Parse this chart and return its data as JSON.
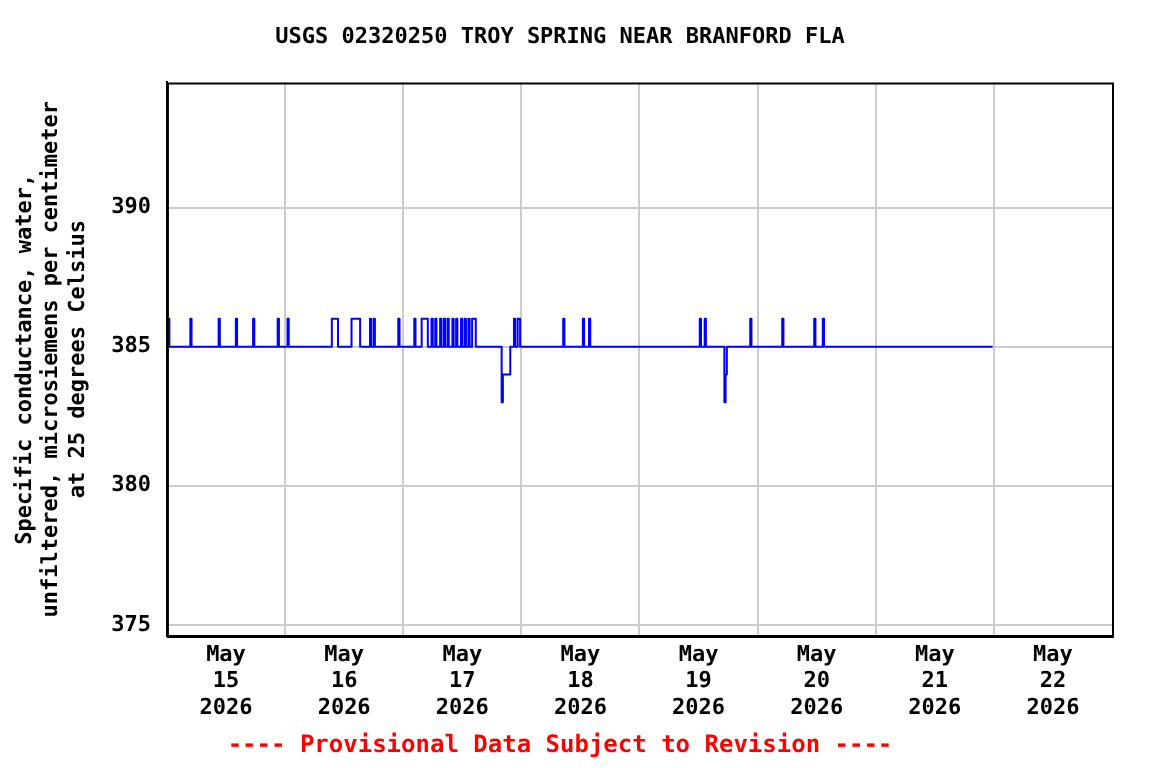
{
  "chart_data": {
    "type": "step",
    "title": "USGS 02320250 TROY SPRING NEAR BRANFORD FLA",
    "ylabel": "Specific conductance, water,\nunfiltered, microsiemens per centimeter\nat 25 degrees Celsius",
    "annotations": [
      "---- Provisional Data Subject to Revision ----"
    ],
    "series": [
      {
        "color": "#0000ff",
        "x": [
          "2026-05-15T00:00",
          "2026-05-15T00:30",
          "2026-05-15T04:45",
          "2026-05-15T05:00",
          "2026-05-15T10:30",
          "2026-05-15T10:45",
          "2026-05-15T14:00",
          "2026-05-15T14:15",
          "2026-05-15T17:30",
          "2026-05-15T17:45",
          "2026-05-15T22:30",
          "2026-05-15T22:45",
          "2026-05-16T00:30",
          "2026-05-16T00:45",
          "2026-05-16T09:30",
          "2026-05-16T10:45",
          "2026-05-16T13:30",
          "2026-05-16T15:15",
          "2026-05-16T17:15",
          "2026-05-16T17:30",
          "2026-05-16T18:00",
          "2026-05-16T18:15",
          "2026-05-16T23:00",
          "2026-05-16T23:15",
          "2026-05-17T02:15",
          "2026-05-17T02:30",
          "2026-05-17T03:45",
          "2026-05-17T05:00",
          "2026-05-17T05:45",
          "2026-05-17T06:00",
          "2026-05-17T06:30",
          "2026-05-17T06:45",
          "2026-05-17T07:30",
          "2026-05-17T07:45",
          "2026-05-17T08:15",
          "2026-05-17T08:30",
          "2026-05-17T09:00",
          "2026-05-17T09:15",
          "2026-05-17T10:00",
          "2026-05-17T10:15",
          "2026-05-17T10:45",
          "2026-05-17T11:00",
          "2026-05-17T11:45",
          "2026-05-17T12:00",
          "2026-05-17T12:30",
          "2026-05-17T12:45",
          "2026-05-17T13:15",
          "2026-05-17T13:30",
          "2026-05-17T14:00",
          "2026-05-17T14:45",
          "2026-05-17T20:00",
          "2026-05-17T20:15",
          "2026-05-17T21:45",
          "2026-05-17T22:30",
          "2026-05-17T22:45",
          "2026-05-17T23:15",
          "2026-05-17T23:45",
          "2026-05-18T08:30",
          "2026-05-18T08:45",
          "2026-05-18T12:30",
          "2026-05-18T12:45",
          "2026-05-18T13:45",
          "2026-05-18T14:00",
          "2026-05-19T12:15",
          "2026-05-19T12:30",
          "2026-05-19T13:15",
          "2026-05-19T13:30",
          "2026-05-19T17:15",
          "2026-05-19T17:30",
          "2026-05-19T17:45",
          "2026-05-19T22:30",
          "2026-05-19T22:45",
          "2026-05-20T05:00",
          "2026-05-20T05:15",
          "2026-05-20T11:30",
          "2026-05-20T11:45",
          "2026-05-20T13:15",
          "2026-05-20T13:30",
          "2026-05-21T23:45"
        ],
        "values": [
          386,
          385,
          386,
          385,
          386,
          385,
          386,
          385,
          386,
          385,
          386,
          385,
          386,
          385,
          386,
          385,
          386,
          385,
          386,
          385,
          386,
          385,
          386,
          385,
          386,
          385,
          386,
          385,
          386,
          385,
          386,
          385,
          386,
          385,
          386,
          385,
          386,
          385,
          386,
          385,
          386,
          385,
          386,
          385,
          386,
          385,
          386,
          385,
          386,
          385,
          383,
          384,
          385,
          386,
          385,
          386,
          385,
          386,
          385,
          386,
          385,
          386,
          385,
          386,
          385,
          386,
          385,
          383,
          384,
          385,
          386,
          385,
          386,
          385,
          386,
          385,
          386,
          385,
          385
        ]
      }
    ],
    "xlim": [
      "2026-05-15T00:00",
      "2026-05-23T00:00"
    ],
    "xticks": [
      {
        "value": "2026-05-15T12:00",
        "label": "May 15 2026"
      },
      {
        "value": "2026-05-16T00:00",
        "label": null
      },
      {
        "value": "2026-05-16T12:00",
        "label": "May 16 2026"
      },
      {
        "value": "2026-05-17T00:00",
        "label": null
      },
      {
        "value": "2026-05-17T12:00",
        "label": "May 17 2026"
      },
      {
        "value": "2026-05-18T00:00",
        "label": null
      },
      {
        "value": "2026-05-18T12:00",
        "label": "May 18 2026"
      },
      {
        "value": "2026-05-19T00:00",
        "label": null
      },
      {
        "value": "2026-05-19T12:00",
        "label": "May 19 2026"
      },
      {
        "value": "2026-05-20T00:00",
        "label": null
      },
      {
        "value": "2026-05-20T12:00",
        "label": "May 20 2026"
      },
      {
        "value": "2026-05-21T00:00",
        "label": null
      },
      {
        "value": "2026-05-21T12:00",
        "label": "May 21 2026"
      },
      {
        "value": "2026-05-22T00:00",
        "label": null
      },
      {
        "value": "2026-05-22T12:00",
        "label": "May 22 2026"
      }
    ],
    "ylim": [
      374.6,
      394.5
    ],
    "yticks": [
      375,
      380,
      385,
      390
    ],
    "grid": true,
    "legend": false
  }
}
